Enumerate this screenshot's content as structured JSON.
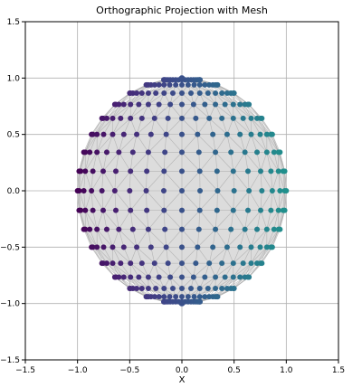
{
  "chart_data": {
    "type": "scatter",
    "title": "Orthographic Projection with Mesh",
    "xlabel": "X",
    "ylabel": "",
    "xlim": [
      -1.5,
      1.5
    ],
    "ylim": [
      -1.5,
      1.5
    ],
    "xticks": [
      -1.5,
      -1.0,
      -0.5,
      0.0,
      0.5,
      1.0,
      1.5
    ],
    "yticks": [
      -1.5,
      -1.0,
      -0.5,
      0.0,
      0.5,
      1.0,
      1.5
    ],
    "xtick_labels": [
      "−1.5",
      "−1.0",
      "−0.5",
      "0.0",
      "0.5",
      "1.0",
      "1.5"
    ],
    "ytick_labels": [
      "−1.5",
      "−1.0",
      "−0.5",
      "0.0",
      "0.5",
      "1.0",
      "1.5"
    ],
    "grid": true,
    "equal_aspect": true,
    "colormap": "viridis",
    "color_by": "x",
    "disk": {
      "center": [
        0,
        0
      ],
      "radius": 1.0,
      "fill": "#dcdcdc"
    },
    "mesh_color": "#aaaaaa",
    "marker_size": 6,
    "latitudes_deg": [
      -90,
      -80,
      -70,
      -60,
      -50,
      -40,
      -30,
      -20,
      -10,
      0,
      10,
      20,
      30,
      40,
      50,
      60,
      70,
      80,
      90
    ],
    "longitudes_deg": [
      -90,
      -80,
      -70,
      -60,
      -50,
      -40,
      -30,
      -20,
      -10,
      0,
      10,
      20,
      30,
      40,
      50,
      60,
      70,
      80,
      90
    ],
    "colors": {
      "cmap_start": "#440154",
      "cmap_mid": "#3b528b",
      "cmap_end": "#21908d",
      "grid": "#b0b0b0"
    }
  }
}
